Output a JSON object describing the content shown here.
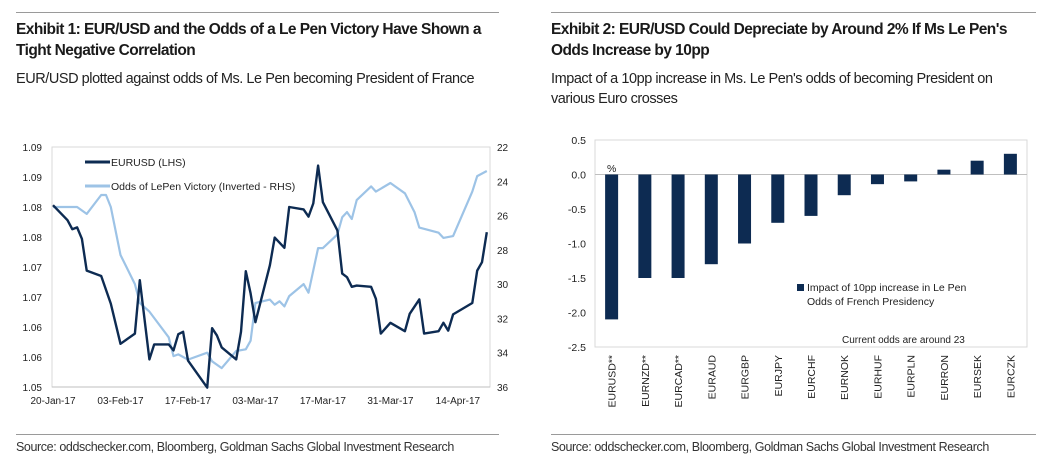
{
  "exhibit1": {
    "title": "Exhibit 1: EUR/USD and the Odds of a Le Pen Victory Have Shown a Tight Negative Correlation",
    "subtitle": "EUR/USD plotted against odds of Ms. Le Pen becoming President of France",
    "source": "Source: oddschecker.com, Bloomberg, Goldman Sachs Global Investment Research"
  },
  "exhibit2": {
    "title": "Exhibit 2: EUR/USD Could Depreciate by Around 2% If Ms Le Pen's Odds Increase by 10pp",
    "subtitle": "Impact of a 10pp increase in Ms. Le Pen's odds of becoming President on various Euro crosses",
    "source": "Source: oddschecker.com, Bloomberg, Goldman Sachs Global Investment Research"
  },
  "chart_data": [
    {
      "type": "line",
      "title": "",
      "xlabel": "",
      "ylabel": "",
      "xlim": [
        "2017-01-20",
        "2017-04-20"
      ],
      "x_ticks": [
        "2017-01-20",
        "2017-02-03",
        "2017-02-17",
        "2017-03-03",
        "2017-03-17",
        "2017-03-31",
        "2017-04-14"
      ],
      "x_tick_labels": [
        "20-Jan-17",
        "03-Feb-17",
        "17-Feb-17",
        "03-Mar-17",
        "17-Mar-17",
        "31-Mar-17",
        "14-Apr-17"
      ],
      "y_left": {
        "range": [
          1.05,
          1.09
        ],
        "ticks": [
          1.09,
          1.085,
          1.08,
          1.075,
          1.07,
          1.065,
          1.06,
          1.055,
          1.05
        ],
        "tick_labels": [
          "1.09",
          "1.09",
          "1.08",
          "1.08",
          "1.07",
          "1.07",
          "1.06",
          "1.06",
          "1.05"
        ]
      },
      "y_right": {
        "range": [
          22,
          36
        ],
        "inverted": true,
        "ticks": [
          22,
          24,
          26,
          28,
          30,
          32,
          34,
          36
        ],
        "tick_labels": [
          "22",
          "24",
          "26",
          "28",
          "30",
          "32",
          "34",
          "36"
        ]
      },
      "grid": false,
      "legend": "top-left",
      "series": [
        {
          "name": "EURUSD (LHS)",
          "axis": "left",
          "color": "#0d2b52",
          "points": [
            [
              "2017-01-20",
              1.0803
            ],
            [
              "2017-01-23",
              1.0778
            ],
            [
              "2017-01-24",
              1.0763
            ],
            [
              "2017-01-25",
              1.0766
            ],
            [
              "2017-01-26",
              1.0747
            ],
            [
              "2017-01-27",
              1.0694
            ],
            [
              "2017-01-30",
              1.0685
            ],
            [
              "2017-02-01",
              1.0639
            ],
            [
              "2017-02-03",
              1.0572
            ],
            [
              "2017-02-06",
              1.0589
            ],
            [
              "2017-02-07",
              1.0678
            ],
            [
              "2017-02-09",
              1.0546
            ],
            [
              "2017-02-10",
              1.0571
            ],
            [
              "2017-02-13",
              1.0571
            ],
            [
              "2017-02-14",
              1.0561
            ],
            [
              "2017-02-15",
              1.0588
            ],
            [
              "2017-02-16",
              1.0592
            ],
            [
              "2017-02-17",
              1.0544
            ],
            [
              "2017-02-21",
              1.0499
            ],
            [
              "2017-02-22",
              1.0598
            ],
            [
              "2017-02-23",
              1.0586
            ],
            [
              "2017-02-24",
              1.0566
            ],
            [
              "2017-02-27",
              1.0546
            ],
            [
              "2017-02-28",
              1.0592
            ],
            [
              "2017-03-01",
              1.0693
            ],
            [
              "2017-03-02",
              1.0656
            ],
            [
              "2017-03-03",
              1.0608
            ],
            [
              "2017-03-06",
              1.0703
            ],
            [
              "2017-03-07",
              1.0749
            ],
            [
              "2017-03-09",
              1.0732
            ],
            [
              "2017-03-10",
              1.08
            ],
            [
              "2017-03-13",
              1.0796
            ],
            [
              "2017-03-14",
              1.0784
            ],
            [
              "2017-03-15",
              1.0806
            ],
            [
              "2017-03-16",
              1.0869
            ],
            [
              "2017-03-17",
              1.0808
            ],
            [
              "2017-03-20",
              1.0761
            ],
            [
              "2017-03-21",
              1.0689
            ],
            [
              "2017-03-22",
              1.0683
            ],
            [
              "2017-03-23",
              1.0667
            ],
            [
              "2017-03-24",
              1.0669
            ],
            [
              "2017-03-27",
              1.0667
            ],
            [
              "2017-03-28",
              1.0647
            ],
            [
              "2017-03-29",
              1.0589
            ],
            [
              "2017-03-31",
              1.0607
            ],
            [
              "2017-04-03",
              1.0593
            ],
            [
              "2017-04-04",
              1.0622
            ],
            [
              "2017-04-06",
              1.0646
            ],
            [
              "2017-04-07",
              1.0589
            ],
            [
              "2017-04-10",
              1.0593
            ],
            [
              "2017-04-11",
              1.0607
            ],
            [
              "2017-04-12",
              1.0594
            ],
            [
              "2017-04-13",
              1.0621
            ],
            [
              "2017-04-17",
              1.064
            ],
            [
              "2017-04-18",
              1.0694
            ],
            [
              "2017-04-19",
              1.0708
            ],
            [
              "2017-04-20",
              1.0758
            ]
          ]
        },
        {
          "name": "Odds of LePen Victory (Inverted - RHS)",
          "axis": "right",
          "color": "#9dc3e6",
          "points": [
            [
              "2017-01-20",
              25.5
            ],
            [
              "2017-01-24",
              25.5
            ],
            [
              "2017-01-25",
              25.5
            ],
            [
              "2017-01-27",
              25.9
            ],
            [
              "2017-01-30",
              24.8
            ],
            [
              "2017-01-31",
              24.8
            ],
            [
              "2017-02-01",
              25.5
            ],
            [
              "2017-02-03",
              28.3
            ],
            [
              "2017-02-06",
              30.0
            ],
            [
              "2017-02-07",
              31.1
            ],
            [
              "2017-02-09",
              31.6
            ],
            [
              "2017-02-13",
              33.1
            ],
            [
              "2017-02-14",
              34.2
            ],
            [
              "2017-02-15",
              34.1
            ],
            [
              "2017-02-17",
              34.4
            ],
            [
              "2017-02-21",
              34.0
            ],
            [
              "2017-02-22",
              34.5
            ],
            [
              "2017-02-24",
              34.9
            ],
            [
              "2017-02-27",
              33.9
            ],
            [
              "2017-03-01",
              33.8
            ],
            [
              "2017-03-02",
              33.3
            ],
            [
              "2017-03-03",
              31.1
            ],
            [
              "2017-03-06",
              30.9
            ],
            [
              "2017-03-07",
              31.2
            ],
            [
              "2017-03-08",
              31.0
            ],
            [
              "2017-03-09",
              31.3
            ],
            [
              "2017-03-10",
              30.7
            ],
            [
              "2017-03-13",
              30.0
            ],
            [
              "2017-03-14",
              30.5
            ],
            [
              "2017-03-16",
              27.9
            ],
            [
              "2017-03-17",
              27.9
            ],
            [
              "2017-03-20",
              27.1
            ],
            [
              "2017-03-21",
              26.1
            ],
            [
              "2017-03-22",
              25.8
            ],
            [
              "2017-03-23",
              26.2
            ],
            [
              "2017-03-24",
              25.1
            ],
            [
              "2017-03-27",
              24.3
            ],
            [
              "2017-03-28",
              24.6
            ],
            [
              "2017-03-31",
              24.1
            ],
            [
              "2017-04-03",
              24.7
            ],
            [
              "2017-04-05",
              25.8
            ],
            [
              "2017-04-06",
              26.7
            ],
            [
              "2017-04-10",
              27.0
            ],
            [
              "2017-04-11",
              27.3
            ],
            [
              "2017-04-13",
              27.2
            ],
            [
              "2017-04-17",
              24.6
            ],
            [
              "2017-04-18",
              23.7
            ],
            [
              "2017-04-20",
              23.4
            ]
          ]
        }
      ]
    },
    {
      "type": "bar",
      "title": "",
      "xlabel": "",
      "ylabel": "%",
      "ylim": [
        -2.5,
        0.5
      ],
      "y_ticks": [
        0.5,
        0.0,
        -0.5,
        -1.0,
        -1.5,
        -2.0,
        -2.5
      ],
      "y_tick_labels": [
        "0.5",
        "0.0",
        "-0.5",
        "-1.0",
        "-1.5",
        "-2.0",
        "-2.5"
      ],
      "grid": false,
      "legend": "center-right",
      "categories": [
        "EURUSD**",
        "EURNZD**",
        "EURCAD**",
        "EURAUD",
        "EURGBP",
        "EURJPY",
        "EURCHF",
        "EURNOK",
        "EURHUF",
        "EURPLN",
        "EURRON",
        "EURSEK",
        "EURCZK"
      ],
      "series": [
        {
          "name": "Impact of 10pp increase in Le Pen Odds of French Presidency",
          "color": "#0d2b52",
          "values": [
            -2.1,
            -1.5,
            -1.5,
            -1.3,
            -1.0,
            -0.7,
            -0.6,
            -0.3,
            -0.14,
            -0.1,
            0.07,
            0.2,
            0.3
          ]
        }
      ],
      "annotations": [
        "Current  odds are around 23"
      ]
    }
  ]
}
